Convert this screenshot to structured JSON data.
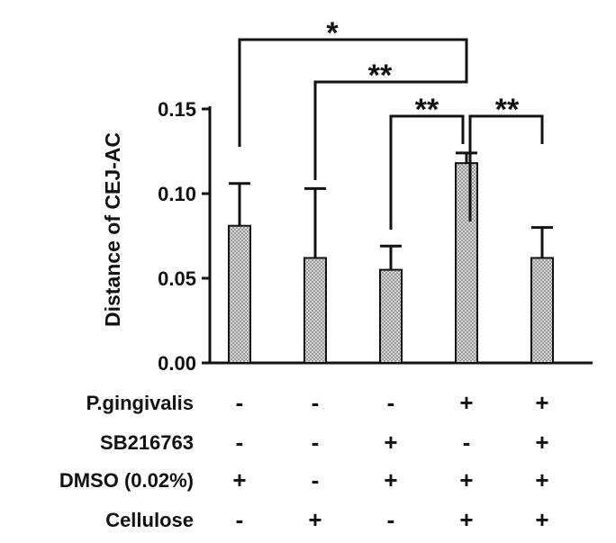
{
  "chart_data": {
    "type": "bar",
    "title": "",
    "ylabel": "Distance of CEJ-AC",
    "xlabel": "",
    "ylim": [
      0,
      0.15
    ],
    "yticks": [
      "0.00",
      "0.05",
      "0.10",
      "0.15"
    ],
    "grid": false,
    "legend": "none",
    "bar_color": "#aaaaaa",
    "series": [
      {
        "values": [
          0.081,
          0.062,
          0.055,
          0.118,
          0.062
        ],
        "errors": [
          0.025,
          0.041,
          0.014,
          0.006,
          0.018
        ]
      }
    ],
    "conditions": [
      {
        "label": "P.gingivalis",
        "signs": [
          "-",
          "-",
          "-",
          "+",
          "+"
        ]
      },
      {
        "label": "SB216763",
        "signs": [
          "-",
          "-",
          "+",
          "-",
          "+"
        ]
      },
      {
        "label": "DMSO (0.02%)",
        "signs": [
          "+",
          "-",
          "+",
          "+",
          "+"
        ]
      },
      {
        "label": "Cellulose",
        "signs": [
          "-",
          "+",
          "-",
          "+",
          "+"
        ]
      }
    ],
    "significance": [
      {
        "from": 1,
        "to": 4,
        "label": "*"
      },
      {
        "from": 2,
        "to": 4,
        "label": "**"
      },
      {
        "from": 3,
        "to": 4,
        "label": "**"
      },
      {
        "from": 4,
        "to": 5,
        "label": "**"
      }
    ]
  }
}
